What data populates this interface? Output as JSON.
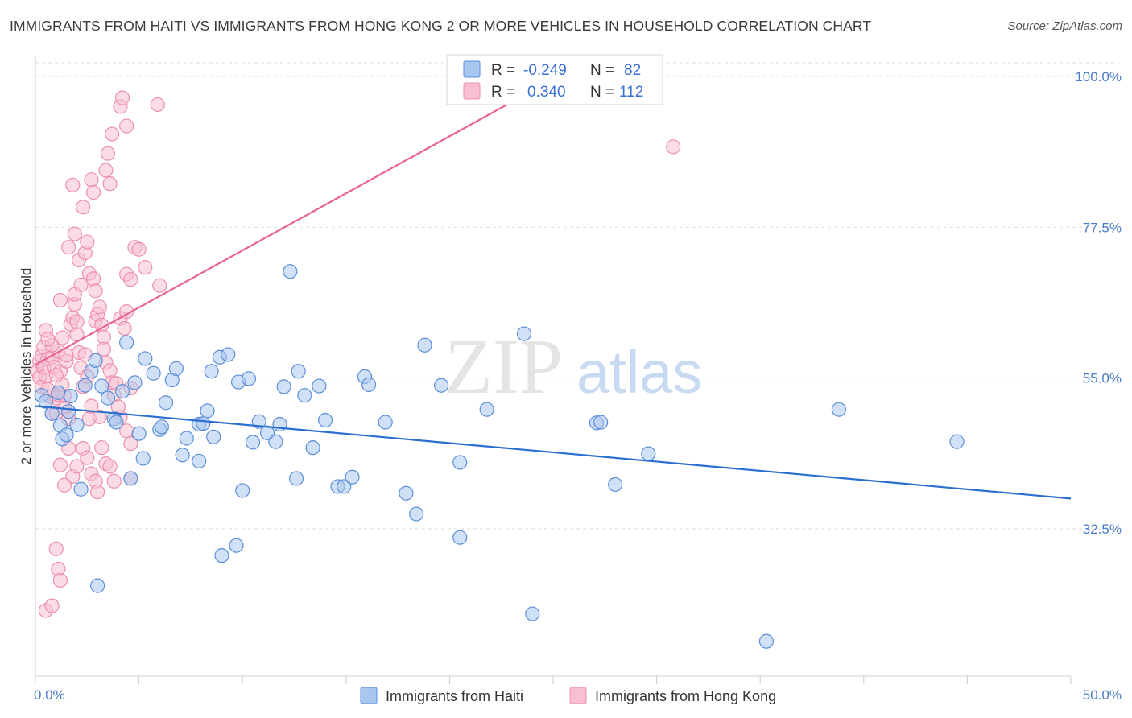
{
  "title": "IMMIGRANTS FROM HAITI VS IMMIGRANTS FROM HONG KONG 2 OR MORE VEHICLES IN HOUSEHOLD CORRELATION CHART",
  "source": "Source: ZipAtlas.com",
  "watermark": {
    "zip": "ZIP",
    "atlas": "atlas"
  },
  "colors": {
    "haiti_fill": "#a9c6ef",
    "haiti_stroke": "#5b8fd9",
    "haiti_line": "#2a6fcf",
    "hk_fill": "#f7bfd0",
    "hk_stroke": "#ec8fae",
    "hk_line": "#e8648f",
    "grid": "#dddddd",
    "tick_label": "#4a7cc7"
  },
  "legend": {
    "r_label": "R =",
    "n_label": "N =",
    "haiti": {
      "r": "-0.249",
      "n": "82"
    },
    "hk": {
      "r": "0.340",
      "n": "112"
    }
  },
  "chart_data": {
    "type": "scatter",
    "xlabel": "",
    "ylabel": "2 or more Vehicles in Household",
    "xlim": [
      0,
      50
    ],
    "ylim": [
      10.5,
      103
    ],
    "x_tick_labels": [
      "0.0%",
      "50.0%"
    ],
    "y_ticks": [
      32.5,
      55.0,
      77.5,
      100.0
    ],
    "y_tick_labels": [
      "32.5%",
      "55.0%",
      "77.5%",
      "100.0%"
    ],
    "grid": true,
    "series": [
      {
        "name": "Immigrants from Haiti",
        "trend": {
          "x": [
            0,
            50
          ],
          "y": [
            50.8,
            37.0
          ]
        },
        "points": [
          [
            0.3,
            52.4
          ],
          [
            0.5,
            51.5
          ],
          [
            0.8,
            49.7
          ],
          [
            1.1,
            52.8
          ],
          [
            1.2,
            47.9
          ],
          [
            1.3,
            45.9
          ],
          [
            1.5,
            46.5
          ],
          [
            1.6,
            50.0
          ],
          [
            1.7,
            52.3
          ],
          [
            2.0,
            48.0
          ],
          [
            2.2,
            38.4
          ],
          [
            2.4,
            53.9
          ],
          [
            2.7,
            56.0
          ],
          [
            2.9,
            57.6
          ],
          [
            3.2,
            53.8
          ],
          [
            3.5,
            52.0
          ],
          [
            3.8,
            48.9
          ],
          [
            3.9,
            48.4
          ],
          [
            4.2,
            53.0
          ],
          [
            4.4,
            60.3
          ],
          [
            4.6,
            40.0
          ],
          [
            4.8,
            54.3
          ],
          [
            5.0,
            46.7
          ],
          [
            5.2,
            43.0
          ],
          [
            5.3,
            57.9
          ],
          [
            5.7,
            55.7
          ],
          [
            6.0,
            47.3
          ],
          [
            6.1,
            47.7
          ],
          [
            6.3,
            51.3
          ],
          [
            6.6,
            54.7
          ],
          [
            6.8,
            56.4
          ],
          [
            7.1,
            43.5
          ],
          [
            7.3,
            46.0
          ],
          [
            7.9,
            48.1
          ],
          [
            7.9,
            42.6
          ],
          [
            8.1,
            48.2
          ],
          [
            8.3,
            50.1
          ],
          [
            8.5,
            56.0
          ],
          [
            8.6,
            46.2
          ],
          [
            8.9,
            58.1
          ],
          [
            9.0,
            28.5
          ],
          [
            9.3,
            58.5
          ],
          [
            9.7,
            30.0
          ],
          [
            9.8,
            54.4
          ],
          [
            10.0,
            38.2
          ],
          [
            10.3,
            54.9
          ],
          [
            10.5,
            45.4
          ],
          [
            10.8,
            48.5
          ],
          [
            11.2,
            46.8
          ],
          [
            11.6,
            45.5
          ],
          [
            11.8,
            48.1
          ],
          [
            12.0,
            53.7
          ],
          [
            12.3,
            70.9
          ],
          [
            12.6,
            40.0
          ],
          [
            12.7,
            56.0
          ],
          [
            13.0,
            52.4
          ],
          [
            13.4,
            44.6
          ],
          [
            13.7,
            53.8
          ],
          [
            14.0,
            48.7
          ],
          [
            14.6,
            38.8
          ],
          [
            14.9,
            38.8
          ],
          [
            15.3,
            40.2
          ],
          [
            15.9,
            55.2
          ],
          [
            16.1,
            54.0
          ],
          [
            16.9,
            48.4
          ],
          [
            17.9,
            37.8
          ],
          [
            18.4,
            34.7
          ],
          [
            18.8,
            59.9
          ],
          [
            19.6,
            53.9
          ],
          [
            20.5,
            31.2
          ],
          [
            20.5,
            42.4
          ],
          [
            21.8,
            50.3
          ],
          [
            23.6,
            61.6
          ],
          [
            24.0,
            19.8
          ],
          [
            27.1,
            48.3
          ],
          [
            27.3,
            48.4
          ],
          [
            28.0,
            39.1
          ],
          [
            29.6,
            43.7
          ],
          [
            35.3,
            15.7
          ],
          [
            38.8,
            50.3
          ],
          [
            44.5,
            45.5
          ],
          [
            3.0,
            24.0
          ]
        ]
      },
      {
        "name": "Immigrants from Hong Kong",
        "trend": {
          "x": [
            0,
            27.0
          ],
          "y": [
            57.0,
            103
          ]
        },
        "points": [
          [
            0.1,
            56.0
          ],
          [
            0.2,
            57.5
          ],
          [
            0.2,
            55.1
          ],
          [
            0.3,
            58.3
          ],
          [
            0.3,
            53.7
          ],
          [
            0.4,
            59.6
          ],
          [
            0.4,
            56.5
          ],
          [
            0.5,
            62.1
          ],
          [
            0.5,
            55.3
          ],
          [
            0.6,
            57.8
          ],
          [
            0.6,
            53.3
          ],
          [
            0.7,
            52.2
          ],
          [
            0.8,
            49.7
          ],
          [
            0.8,
            58.1
          ],
          [
            0.9,
            56.6
          ],
          [
            1.0,
            52.0
          ],
          [
            1.0,
            49.8
          ],
          [
            1.1,
            59.0
          ],
          [
            1.1,
            52.5
          ],
          [
            1.2,
            56.0
          ],
          [
            1.3,
            54.0
          ],
          [
            1.4,
            52.3
          ],
          [
            1.4,
            50.5
          ],
          [
            1.5,
            57.5
          ],
          [
            1.6,
            48.9
          ],
          [
            1.7,
            63.0
          ],
          [
            1.8,
            64.0
          ],
          [
            1.9,
            66.0
          ],
          [
            1.9,
            67.5
          ],
          [
            2.0,
            61.5
          ],
          [
            2.1,
            58.8
          ],
          [
            2.2,
            56.5
          ],
          [
            2.3,
            53.7
          ],
          [
            2.4,
            58.5
          ],
          [
            2.5,
            55.2
          ],
          [
            2.6,
            48.9
          ],
          [
            2.7,
            50.8
          ],
          [
            2.9,
            63.5
          ],
          [
            3.0,
            64.5
          ],
          [
            3.1,
            65.6
          ],
          [
            3.2,
            62.9
          ],
          [
            3.3,
            61.1
          ],
          [
            3.3,
            59.3
          ],
          [
            3.4,
            57.3
          ],
          [
            3.6,
            56.1
          ],
          [
            3.7,
            54.3
          ],
          [
            3.8,
            52.4
          ],
          [
            4.0,
            50.7
          ],
          [
            4.1,
            63.9
          ],
          [
            4.3,
            62.4
          ],
          [
            4.4,
            64.9
          ],
          [
            4.4,
            70.5
          ],
          [
            4.6,
            69.7
          ],
          [
            4.8,
            74.5
          ],
          [
            5.0,
            74.2
          ],
          [
            5.3,
            71.5
          ],
          [
            1.6,
            74.5
          ],
          [
            1.9,
            76.5
          ],
          [
            2.1,
            72.6
          ],
          [
            2.2,
            68.9
          ],
          [
            2.4,
            73.7
          ],
          [
            2.5,
            75.3
          ],
          [
            2.6,
            70.6
          ],
          [
            2.8,
            69.8
          ],
          [
            1.8,
            83.8
          ],
          [
            2.3,
            80.5
          ],
          [
            2.7,
            84.6
          ],
          [
            2.8,
            82.7
          ],
          [
            3.4,
            86.0
          ],
          [
            3.6,
            84.0
          ],
          [
            3.5,
            88.5
          ],
          [
            3.7,
            91.4
          ],
          [
            4.1,
            95.5
          ],
          [
            4.2,
            96.8
          ],
          [
            4.4,
            92.6
          ],
          [
            5.9,
            95.8
          ],
          [
            6.0,
            68.8
          ],
          [
            1.0,
            29.5
          ],
          [
            1.1,
            26.5
          ],
          [
            1.2,
            24.8
          ],
          [
            1.8,
            40.3
          ],
          [
            2.0,
            41.8
          ],
          [
            2.3,
            44.5
          ],
          [
            2.5,
            43.1
          ],
          [
            2.7,
            40.7
          ],
          [
            2.9,
            39.6
          ],
          [
            3.0,
            38.0
          ],
          [
            3.2,
            44.6
          ],
          [
            3.4,
            42.2
          ],
          [
            3.6,
            41.8
          ],
          [
            3.8,
            39.6
          ],
          [
            4.1,
            49.1
          ],
          [
            4.4,
            47.1
          ],
          [
            4.6,
            45.2
          ],
          [
            4.6,
            40.0
          ],
          [
            0.5,
            20.3
          ],
          [
            0.8,
            21.0
          ],
          [
            1.6,
            44.5
          ],
          [
            1.4,
            39.0
          ],
          [
            1.2,
            42.0
          ],
          [
            0.8,
            59.9
          ],
          [
            1.0,
            55.4
          ],
          [
            1.3,
            61.0
          ],
          [
            1.5,
            58.4
          ],
          [
            1.2,
            66.6
          ],
          [
            2.0,
            63.4
          ],
          [
            2.9,
            68.0
          ],
          [
            3.1,
            49.2
          ],
          [
            3.9,
            54.2
          ],
          [
            4.6,
            53.5
          ],
          [
            30.8,
            89.5
          ],
          [
            0.6,
            60.8
          ]
        ]
      }
    ]
  },
  "bottom_legend": {
    "haiti": "Immigrants from Haiti",
    "hk": "Immigrants from Hong Kong"
  }
}
